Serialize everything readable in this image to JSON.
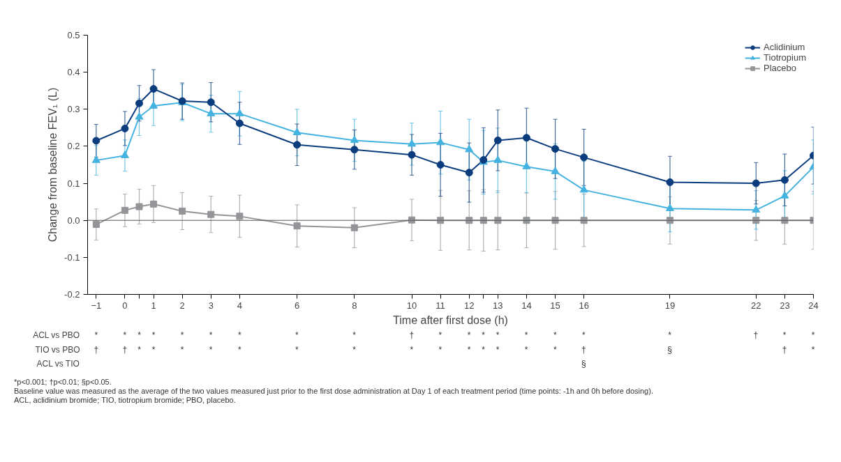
{
  "chart_data": [
    {
      "type": "line",
      "xlabel": "Time after first dose (h)",
      "ylabel": "Change from baseline FEV₁ (L)",
      "x": [
        -1,
        0,
        0.5,
        1,
        2,
        3,
        4,
        6,
        8,
        10,
        11,
        12,
        12.5,
        13,
        14,
        15,
        16,
        19,
        22,
        23,
        24
      ],
      "series": [
        {
          "name": "Aclidinium",
          "color": "#0b3d7e",
          "marker": "circle",
          "values": [
            0.215,
            0.248,
            0.316,
            0.355,
            0.322,
            0.319,
            0.262,
            0.204,
            0.191,
            0.177,
            0.15,
            0.129,
            0.163,
            0.216,
            0.223,
            0.193,
            0.17,
            0.103,
            0.1,
            0.109,
            0.175
          ],
          "errors": [
            0.044,
            0.046,
            0.048,
            0.052,
            0.049,
            0.053,
            0.057,
            0.056,
            0.053,
            0.055,
            0.085,
            0.08,
            0.087,
            0.082,
            0.08,
            0.08,
            0.076,
            0.07,
            0.056,
            0.07,
            0.077
          ]
        },
        {
          "name": "Tiotropium",
          "color": "#45b3e0",
          "marker": "triangle",
          "values": [
            0.162,
            0.175,
            0.279,
            0.309,
            0.318,
            0.288,
            0.288,
            0.237,
            0.216,
            0.206,
            0.21,
            0.191,
            0.157,
            0.162,
            0.145,
            0.132,
            0.082,
            0.032,
            0.028,
            0.066,
            0.144
          ],
          "errors": [
            0.04,
            0.042,
            0.05,
            0.053,
            0.049,
            0.05,
            0.06,
            0.063,
            0.057,
            0.057,
            0.085,
            0.082,
            0.086,
            0.087,
            0.07,
            0.075,
            0.077,
            0.063,
            0.052,
            0.068,
            0.073
          ]
        },
        {
          "name": "Placebo",
          "color": "#939598",
          "marker": "square",
          "values": [
            -0.011,
            0.027,
            0.037,
            0.044,
            0.025,
            0.016,
            0.011,
            -0.015,
            -0.02,
            0.001,
            0,
            0,
            0,
            0,
            0,
            0,
            0,
            0,
            0,
            0,
            0
          ],
          "errors": [
            0.042,
            0.044,
            0.047,
            0.05,
            0.05,
            0.049,
            0.057,
            0.057,
            0.054,
            0.056,
            0.081,
            0.08,
            0.083,
            0.08,
            0.074,
            0.078,
            0.071,
            0.064,
            0.054,
            0.064,
            0.078
          ]
        }
      ],
      "xlim": [
        -1.3,
        24
      ],
      "xticks": [
        -1,
        0,
        {
          "value": 0.5,
          "label": null
        },
        1,
        2,
        3,
        4,
        6,
        8,
        10,
        11,
        12,
        {
          "value": 12.5,
          "label": null
        },
        13,
        14,
        15,
        16,
        19,
        22,
        23,
        24
      ],
      "ylim": [
        -0.2,
        0.5
      ],
      "yticks": [
        {
          "value": -0.2,
          "label": "-0.2"
        },
        {
          "value": -0.1,
          "label": "-0.1"
        },
        {
          "value": 0,
          "label": "0.0"
        },
        {
          "value": 0.1,
          "label": "0.1"
        },
        {
          "value": 0.2,
          "label": "0.2"
        },
        {
          "value": 0.3,
          "label": "0.3"
        },
        {
          "value": 0.4,
          "label": "0.4"
        },
        {
          "value": 0.5,
          "label": "0.5"
        }
      ],
      "ref_lines": [
        {
          "axis": "y",
          "value": 0,
          "color": "#555555"
        }
      ],
      "grid": false,
      "legend": "top right",
      "line_style": "solid",
      "annotations": [
        "*p<0.001; †p<0.01; §p<0.05.",
        "Baseline value was measured as the average of the two values measured just prior to the first dose administration at Day 1 of each treatment period (time points: -1h and 0h before dosing).",
        "ACL, aclidinium bromide; TIO, tiotropium bromide; PBO, placebo."
      ]
    },
    {
      "type": "other",
      "categories": [
        null,
        null,
        null,
        null,
        null,
        null,
        null,
        null,
        null,
        null,
        null,
        null,
        null,
        null,
        null,
        null,
        null,
        null,
        null,
        null,
        null
      ],
      "y_categories": [
        "ACL vs PBO",
        "TIO vs PBO",
        "ACL vs TIO"
      ],
      "cell_labels": [
        [
          "*",
          "*",
          "*",
          "*",
          "*",
          "*",
          "*",
          "*",
          "*",
          "†",
          "*",
          "*",
          "*",
          "*",
          "*",
          "*",
          "*",
          "*",
          "†",
          "*",
          "*"
        ],
        [
          "†",
          "†",
          "*",
          "*",
          "*",
          "*",
          "*",
          "*",
          "*",
          "*",
          "*",
          "*",
          "*",
          "*",
          "*",
          "*",
          "†",
          "§",
          null,
          "†",
          "*"
        ],
        [
          null,
          null,
          null,
          null,
          null,
          null,
          null,
          null,
          null,
          null,
          null,
          null,
          null,
          null,
          null,
          null,
          "§",
          null,
          null,
          null,
          null
        ]
      ]
    }
  ]
}
